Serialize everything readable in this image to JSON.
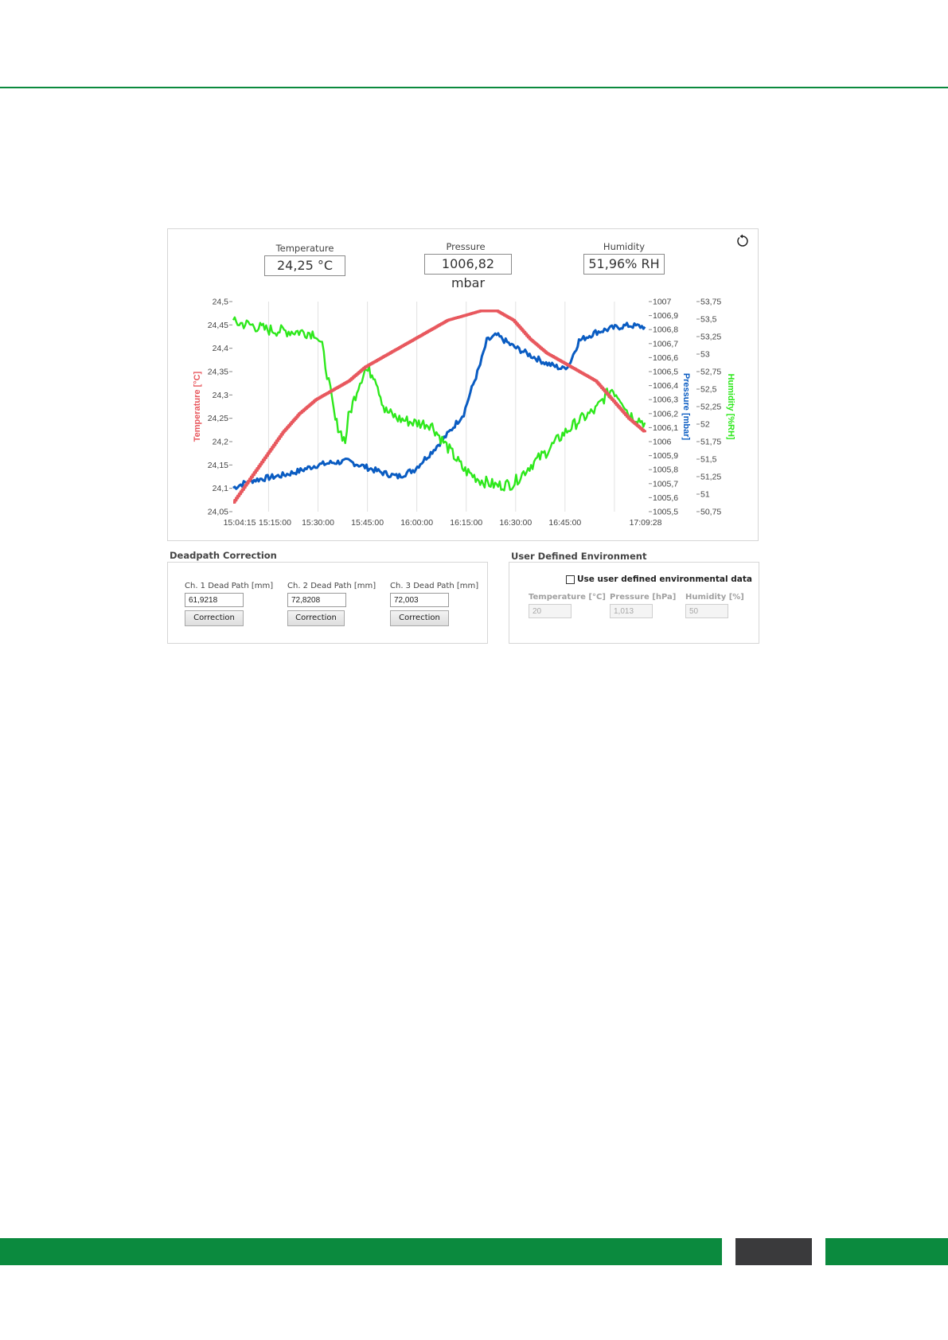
{
  "colors": {
    "brand_green": "#0b8a3e",
    "footer_dark": "#3a3a3c",
    "temperature": "#e8585e",
    "pressure": "#0a5cc2",
    "humidity": "#2ee81c"
  },
  "readouts": {
    "temperature": {
      "label": "Temperature",
      "value": "24,25 °C"
    },
    "pressure": {
      "label": "Pressure",
      "value": "1006,82 mbar"
    },
    "humidity": {
      "label": "Humidity",
      "value": "51,96% RH"
    }
  },
  "chart_data": {
    "type": "line",
    "y_left_label": "Temperature [°C]",
    "y_right1_label": "Pressure [mbar]",
    "y_right2_label": "Humidity [%RH]",
    "x_ticks": [
      "15:04:15",
      "15:15:00",
      "15:30:00",
      "15:45:00",
      "16:00:00",
      "16:15:00",
      "16:30:00",
      "16:45:00",
      "17:09:28"
    ],
    "x_tick_minutes": [
      0,
      10.75,
      25.75,
      40.75,
      55.75,
      70.75,
      85.75,
      100.75,
      125.2
    ],
    "gridlines_minutes": [
      10.75,
      25.75,
      40.75,
      55.75,
      70.75,
      85.75,
      100.75,
      115.75
    ],
    "x_range_minutes": [
      0,
      125.2
    ],
    "temperature_ticks": [
      "24,5",
      "24,45",
      "24,4",
      "24,35",
      "24,3",
      "24,25",
      "24,2",
      "24,15",
      "24,1",
      "24,05"
    ],
    "temperature_range": [
      24.05,
      24.5
    ],
    "pressure_ticks": [
      "1007",
      "1006,9",
      "1006,8",
      "1006,7",
      "1006,6",
      "1006,5",
      "1006,4",
      "1006,3",
      "1006,2",
      "1006,1",
      "1006",
      "1005,9",
      "1005,8",
      "1005,7",
      "1005,6",
      "1005,5"
    ],
    "pressure_range": [
      1005.5,
      1007.0
    ],
    "humidity_ticks": [
      "53,75",
      "53,5",
      "53,25",
      "53",
      "52,75",
      "52,5",
      "52,25",
      "52",
      "51,75",
      "51,5",
      "51,25",
      "51",
      "50,75"
    ],
    "humidity_range": [
      50.75,
      53.75
    ],
    "series": [
      {
        "name": "Temperature [°C]",
        "color": "#e8585e",
        "points": [
          [
            0,
            24.07
          ],
          [
            5,
            24.12
          ],
          [
            10,
            24.17
          ],
          [
            15,
            24.22
          ],
          [
            20,
            24.26
          ],
          [
            25,
            24.29
          ],
          [
            30,
            24.31
          ],
          [
            35,
            24.33
          ],
          [
            40,
            24.36
          ],
          [
            45,
            24.38
          ],
          [
            50,
            24.4
          ],
          [
            55,
            24.42
          ],
          [
            60,
            24.44
          ],
          [
            65,
            24.46
          ],
          [
            70,
            24.47
          ],
          [
            75,
            24.48
          ],
          [
            80,
            24.48
          ],
          [
            85,
            24.46
          ],
          [
            90,
            24.42
          ],
          [
            95,
            24.39
          ],
          [
            100,
            24.37
          ],
          [
            105,
            24.35
          ],
          [
            110,
            24.33
          ],
          [
            115,
            24.29
          ],
          [
            120,
            24.25
          ],
          [
            125,
            24.22
          ]
        ]
      },
      {
        "name": "Pressure [mbar]",
        "color": "#0a5cc2",
        "points": [
          [
            0,
            1005.67
          ],
          [
            5,
            1005.72
          ],
          [
            10,
            1005.74
          ],
          [
            15,
            1005.76
          ],
          [
            20,
            1005.79
          ],
          [
            25,
            1005.83
          ],
          [
            30,
            1005.85
          ],
          [
            35,
            1005.86
          ],
          [
            40,
            1005.82
          ],
          [
            45,
            1005.78
          ],
          [
            50,
            1005.75
          ],
          [
            55,
            1005.8
          ],
          [
            60,
            1005.92
          ],
          [
            65,
            1006.05
          ],
          [
            70,
            1006.2
          ],
          [
            72,
            1006.35
          ],
          [
            75,
            1006.55
          ],
          [
            77,
            1006.72
          ],
          [
            80,
            1006.76
          ],
          [
            85,
            1006.68
          ],
          [
            90,
            1006.62
          ],
          [
            95,
            1006.56
          ],
          [
            100,
            1006.52
          ],
          [
            102,
            1006.55
          ],
          [
            105,
            1006.72
          ],
          [
            110,
            1006.78
          ],
          [
            115,
            1006.81
          ],
          [
            120,
            1006.83
          ],
          [
            125,
            1006.82
          ]
        ]
      },
      {
        "name": "Humidity [%RH]",
        "color": "#2ee81c",
        "points": [
          [
            0,
            53.45
          ],
          [
            5,
            53.42
          ],
          [
            10,
            53.35
          ],
          [
            15,
            53.33
          ],
          [
            20,
            53.32
          ],
          [
            25,
            53.3
          ],
          [
            27,
            53.1
          ],
          [
            29,
            52.6
          ],
          [
            31,
            52.05
          ],
          [
            34,
            51.75
          ],
          [
            35,
            52.1
          ],
          [
            38,
            52.55
          ],
          [
            40,
            52.78
          ],
          [
            43,
            52.7
          ],
          [
            46,
            52.2
          ],
          [
            50,
            52.08
          ],
          [
            55,
            52.02
          ],
          [
            60,
            52.0
          ],
          [
            63,
            51.8
          ],
          [
            67,
            51.55
          ],
          [
            70,
            51.35
          ],
          [
            75,
            51.2
          ],
          [
            80,
            51.12
          ],
          [
            85,
            51.15
          ],
          [
            90,
            51.4
          ],
          [
            95,
            51.6
          ],
          [
            100,
            51.85
          ],
          [
            105,
            52.05
          ],
          [
            110,
            52.2
          ],
          [
            113,
            52.4
          ],
          [
            115,
            52.5
          ],
          [
            118,
            52.35
          ],
          [
            120,
            52.15
          ],
          [
            125,
            52.02
          ]
        ]
      }
    ]
  },
  "deadpath": {
    "title": "Deadpath Correction",
    "channels": [
      {
        "label": "Ch. 1 Dead Path [mm]",
        "value": "61,9218",
        "button": "Correction"
      },
      {
        "label": "Ch. 2 Dead Path [mm]",
        "value": "72,8208",
        "button": "Correction"
      },
      {
        "label": "Ch. 3 Dead Path [mm]",
        "value": "72,003",
        "button": "Correction"
      }
    ]
  },
  "user_env": {
    "title": "User Defined Environment",
    "checkbox_label": "Use user defined environmental data",
    "checked": false,
    "fields": [
      {
        "label": "Temperature [°C]",
        "value": "20"
      },
      {
        "label": "Pressure [hPa]",
        "value": "1,013"
      },
      {
        "label": "Humidity [%]",
        "value": "50"
      }
    ]
  }
}
